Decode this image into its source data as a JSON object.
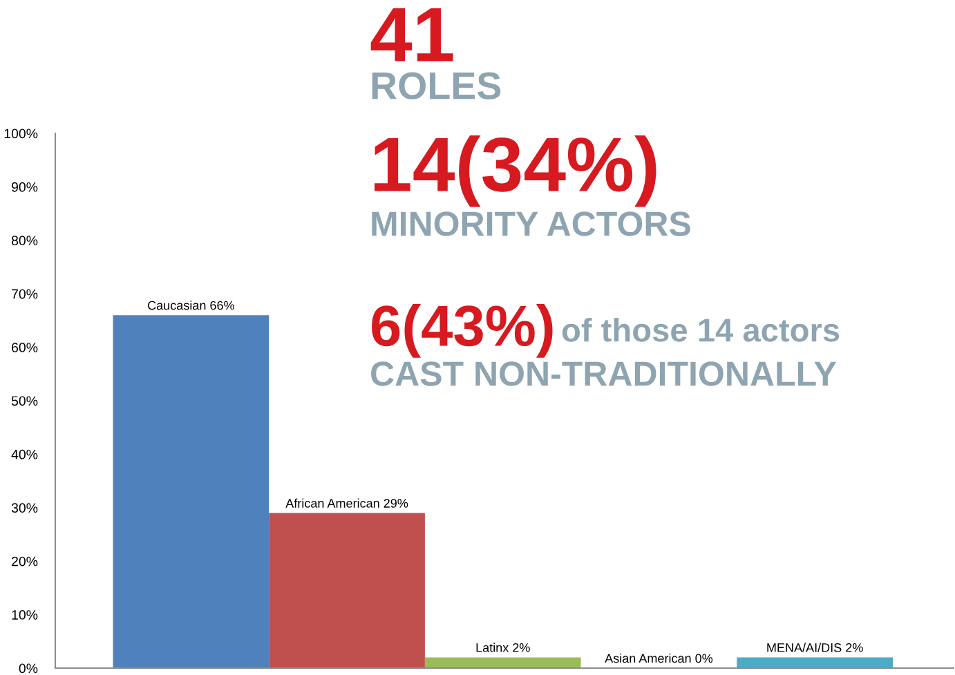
{
  "chart_data": {
    "type": "bar",
    "categories": [
      "Caucasian",
      "African American",
      "Latinx",
      "Asian American",
      "MENA/AI/DIS"
    ],
    "values": [
      66,
      29,
      2,
      0,
      2
    ],
    "colors": [
      "#4f81bd",
      "#c0504d",
      "#9bbb59",
      "#8064a2",
      "#4bacc6"
    ],
    "value_labels": [
      "66%",
      "29%",
      "2%",
      "0%",
      "2%"
    ],
    "ylim": [
      0,
      100
    ],
    "yticks": [
      {
        "value": 0,
        "label": "0%"
      },
      {
        "value": 10,
        "label": "10%"
      },
      {
        "value": 20,
        "label": "20%"
      },
      {
        "value": 30,
        "label": "30%"
      },
      {
        "value": 40,
        "label": "40%"
      },
      {
        "value": 50,
        "label": "50%"
      },
      {
        "value": 60,
        "label": "60%"
      },
      {
        "value": 70,
        "label": "70%"
      },
      {
        "value": 80,
        "label": "80%"
      },
      {
        "value": 90,
        "label": "90%"
      },
      {
        "value": 100,
        "label": "100%"
      }
    ],
    "tick_labels": "y",
    "grid": false,
    "annotations": [
      "41",
      "ROLES",
      "14(34%)",
      "MINORITY ACTORS",
      "6(43%)",
      "of those 14 actors",
      "CAST NON-TRADITIONALLY"
    ]
  }
}
